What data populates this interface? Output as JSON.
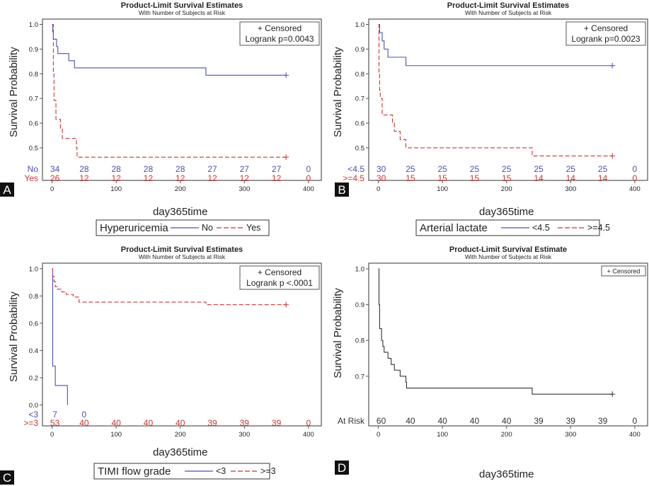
{
  "colors": {
    "group1": "#4a4fb0",
    "group2": "#cc3333",
    "single": "#333333",
    "frame": "#555555"
  },
  "chart_data": [
    {
      "panel": "A",
      "type": "line",
      "title": "Product-Limit Survival Estimates",
      "subtitle": "With Number of Subjects at Risk",
      "xlabel": "day365time",
      "ylabel": "Survival Probability",
      "xlim": [
        -15,
        420
      ],
      "ylim": [
        0.43,
        1.01
      ],
      "xticks": [
        0,
        100,
        200,
        300,
        400
      ],
      "yticks": [
        0.5,
        0.6,
        0.7,
        0.8,
        0.9,
        1.0
      ],
      "ytick_labels": [
        "0.5",
        "0.6",
        "0.7",
        "0.8",
        "0.9",
        "1.0"
      ],
      "inset_lines": [
        "+ Censored",
        "Logrank p=0.0043"
      ],
      "legend": {
        "title": "Hyperuricemia",
        "entries": [
          "No",
          "Yes"
        ]
      },
      "risk_times": [
        0,
        50,
        100,
        150,
        200,
        250,
        300,
        350,
        400
      ],
      "series": [
        {
          "name": "No",
          "style": "solid",
          "steps": [
            [
              0,
              1.0
            ],
            [
              1,
              0.97
            ],
            [
              2,
              0.94
            ],
            [
              7,
              0.91
            ],
            [
              9,
              0.882
            ],
            [
              26,
              0.853
            ],
            [
              35,
              0.824
            ],
            [
              240,
              0.794
            ],
            [
              365,
              0.794
            ]
          ],
          "censor": [
            [
              365,
              0.794
            ]
          ],
          "at_risk": [
            "34",
            "28",
            "28",
            "28",
            "28",
            "27",
            "27",
            "27",
            "0"
          ]
        },
        {
          "name": "Yes",
          "style": "dashed",
          "steps": [
            [
              0,
              1.0
            ],
            [
              2,
              0.808
            ],
            [
              3,
              0.692
            ],
            [
              6,
              0.615
            ],
            [
              13,
              0.577
            ],
            [
              16,
              0.538
            ],
            [
              38,
              0.5
            ],
            [
              39,
              0.462
            ],
            [
              365,
              0.462
            ]
          ],
          "censor": [
            [
              365,
              0.462
            ]
          ],
          "at_risk": [
            "26",
            "12",
            "12",
            "12",
            "12",
            "12",
            "12",
            "12",
            "0"
          ]
        }
      ]
    },
    {
      "panel": "B",
      "type": "line",
      "title": "Product-Limit Survival Estimates",
      "subtitle": "With Number of Subjects at Risk",
      "xlabel": "day365time",
      "ylabel": "Survival Probability",
      "xlim": [
        -15,
        420
      ],
      "ylim": [
        0.43,
        1.01
      ],
      "xticks": [
        0,
        100,
        200,
        300,
        400
      ],
      "yticks": [
        0.5,
        0.6,
        0.7,
        0.8,
        0.9,
        1.0
      ],
      "ytick_labels": [
        "0.5",
        "0.6",
        "0.7",
        "0.8",
        "0.9",
        "1.0"
      ],
      "inset_lines": [
        "+ Censored",
        "Logrank p=0.0023"
      ],
      "legend": {
        "title": "Arterial lactate",
        "entries": [
          "<4.5",
          ">=4.5"
        ]
      },
      "risk_times": [
        0,
        50,
        100,
        150,
        200,
        250,
        300,
        350,
        400
      ],
      "series": [
        {
          "name": "<4.5",
          "style": "solid",
          "steps": [
            [
              0,
              1.0
            ],
            [
              2,
              0.967
            ],
            [
              6,
              0.933
            ],
            [
              9,
              0.9
            ],
            [
              15,
              0.867
            ],
            [
              43,
              0.833
            ],
            [
              365,
              0.833
            ]
          ],
          "censor": [
            [
              365,
              0.833
            ]
          ],
          "at_risk": [
            "30",
            "25",
            "25",
            "25",
            "25",
            "25",
            "25",
            "25",
            "0"
          ]
        },
        {
          "name": ">=4.5",
          "style": "dashed",
          "steps": [
            [
              0,
              1.0
            ],
            [
              1,
              0.8
            ],
            [
              2,
              0.733
            ],
            [
              3,
              0.7
            ],
            [
              6,
              0.633
            ],
            [
              22,
              0.6
            ],
            [
              25,
              0.567
            ],
            [
              34,
              0.533
            ],
            [
              43,
              0.5
            ],
            [
              240,
              0.467
            ],
            [
              365,
              0.467
            ]
          ],
          "censor": [
            [
              365,
              0.467
            ]
          ],
          "at_risk": [
            "30",
            "15",
            "15",
            "15",
            "15",
            "14",
            "14",
            "14",
            "0"
          ]
        }
      ]
    },
    {
      "panel": "C",
      "type": "line",
      "title": "Product-Limit Survival Estimates",
      "subtitle": "With Number of Subjects at Risk",
      "xlabel": "day365time",
      "ylabel": "Survival Probability",
      "xlim": [
        -15,
        420
      ],
      "ylim": [
        -0.04,
        1.02
      ],
      "xticks": [
        0,
        100,
        200,
        300,
        400
      ],
      "yticks": [
        0.0,
        0.2,
        0.4,
        0.6,
        0.8,
        1.0
      ],
      "ytick_labels": [
        "0.0",
        "0.2",
        "0.4",
        "0.6",
        "0.8",
        "1.0"
      ],
      "inset_lines": [
        "+ Censored",
        "Logrank p <.0001"
      ],
      "legend": {
        "title": "TIMI flow grade",
        "entries": [
          "<3",
          ">=3"
        ]
      },
      "risk_times": [
        0,
        50,
        100,
        150,
        200,
        250,
        300,
        350,
        400
      ],
      "series": [
        {
          "name": "<3",
          "style": "solid",
          "steps": [
            [
              0,
              1.0
            ],
            [
              1,
              0.286
            ],
            [
              5,
              0.143
            ],
            [
              24,
              0.0
            ]
          ],
          "censor": [],
          "at_risk": [
            "7",
            "0",
            "",
            "",
            "",
            "",
            "",
            "",
            ""
          ]
        },
        {
          "name": ">=3",
          "style": "dashed",
          "steps": [
            [
              0,
              1.0
            ],
            [
              1,
              0.943
            ],
            [
              3,
              0.906
            ],
            [
              5,
              0.868
            ],
            [
              9,
              0.849
            ],
            [
              15,
              0.83
            ],
            [
              22,
              0.811
            ],
            [
              33,
              0.792
            ],
            [
              42,
              0.755
            ],
            [
              240,
              0.736
            ],
            [
              365,
              0.736
            ]
          ],
          "censor": [
            [
              365,
              0.736
            ]
          ],
          "at_risk": [
            "53",
            "40",
            "40",
            "40",
            "40",
            "39",
            "39",
            "39",
            "0"
          ]
        }
      ]
    },
    {
      "panel": "D",
      "type": "line",
      "title": "Product-Limit Survival Estimate",
      "subtitle": "With Number of Subjects at Risk",
      "xlabel": "day365time",
      "ylabel": "Survival Probability",
      "xlim": [
        -15,
        420
      ],
      "ylim": [
        0.625,
        1.008
      ],
      "xticks": [
        0,
        100,
        200,
        300,
        400
      ],
      "yticks": [
        0.7,
        0.8,
        0.9,
        1.0
      ],
      "ytick_labels": [
        "0.7",
        "0.8",
        "0.9",
        "1.0"
      ],
      "inset_lines": [
        "+ Censored"
      ],
      "legend": null,
      "risk_times": [
        0,
        50,
        100,
        150,
        200,
        250,
        300,
        350,
        400
      ],
      "series": [
        {
          "name": "At Risk",
          "style": "solid",
          "steps": [
            [
              0,
              1.0
            ],
            [
              1,
              0.9
            ],
            [
              2,
              0.833
            ],
            [
              5,
              0.8
            ],
            [
              7,
              0.783
            ],
            [
              9,
              0.767
            ],
            [
              15,
              0.75
            ],
            [
              20,
              0.733
            ],
            [
              25,
              0.717
            ],
            [
              34,
              0.7
            ],
            [
              43,
              0.683
            ],
            [
              44,
              0.667
            ],
            [
              240,
              0.65
            ],
            [
              365,
              0.65
            ]
          ],
          "censor": [
            [
              365,
              0.65
            ]
          ],
          "at_risk": [
            "60",
            "40",
            "40",
            "40",
            "40",
            "39",
            "39",
            "39",
            "0"
          ]
        }
      ]
    }
  ]
}
